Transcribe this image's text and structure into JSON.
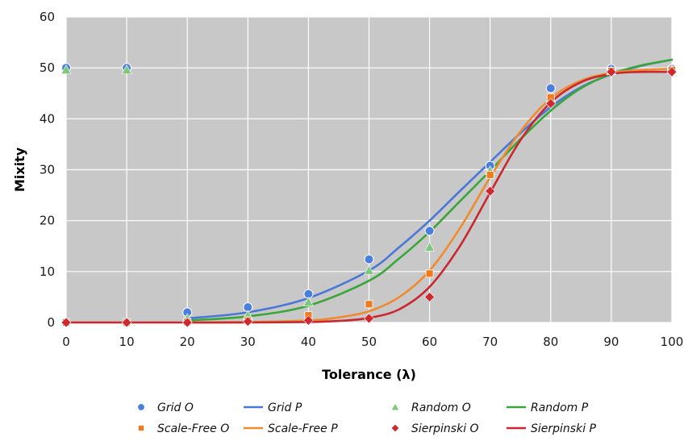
{
  "chart_data": {
    "type": "scatter",
    "title": "",
    "xlabel": "Tolerance (λ)",
    "ylabel": "Mixity",
    "xlim": [
      0,
      100
    ],
    "ylim": [
      0,
      60
    ],
    "x_ticks": [
      0,
      10,
      20,
      30,
      40,
      50,
      60,
      70,
      80,
      90,
      100
    ],
    "y_ticks": [
      0,
      10,
      20,
      30,
      40,
      50,
      60
    ],
    "grid": true,
    "plot_background": "#c8c8c8",
    "legend_position": "bottom",
    "series": [
      {
        "name": "Grid O",
        "kind": "markers",
        "marker": "circle",
        "color": "#4a7fe0",
        "x": [
          0,
          10,
          20,
          30,
          40,
          50,
          60,
          70,
          80,
          90,
          100
        ],
        "y": [
          50.0,
          50.0,
          2.0,
          3.0,
          5.6,
          12.4,
          18.0,
          30.8,
          46.0,
          49.8,
          49.8
        ]
      },
      {
        "name": "Grid P",
        "kind": "line",
        "color": "#4a78d8",
        "x": [
          20,
          30,
          40,
          50,
          55,
          60,
          65,
          70,
          75,
          80,
          85,
          90,
          95,
          100
        ],
        "y": [
          0.8,
          2.0,
          4.8,
          10.2,
          14.8,
          20.0,
          25.8,
          31.5,
          37.2,
          42.3,
          46.2,
          48.7,
          50.4,
          51.6
        ]
      },
      {
        "name": "Random O",
        "kind": "markers",
        "marker": "triangle",
        "color": "#7ec87e",
        "x": [
          0,
          10,
          20,
          30,
          40,
          50,
          60,
          70,
          80,
          90,
          100
        ],
        "y": [
          49.6,
          49.6,
          0.8,
          1.4,
          4.0,
          10.2,
          14.8,
          29.8,
          44.0,
          49.4,
          49.6
        ]
      },
      {
        "name": "Random P",
        "kind": "line",
        "color": "#3aa63a",
        "x": [
          20,
          30,
          40,
          50,
          55,
          60,
          65,
          70,
          75,
          80,
          85,
          90,
          95,
          100
        ],
        "y": [
          0.4,
          1.2,
          3.3,
          8.2,
          12.6,
          17.8,
          23.8,
          29.8,
          36.0,
          41.6,
          46.0,
          48.8,
          50.5,
          51.6
        ]
      },
      {
        "name": "Scale-Free O",
        "kind": "markers",
        "marker": "square",
        "color": "#f07a1e",
        "x": [
          0,
          10,
          20,
          30,
          40,
          50,
          60,
          70,
          80,
          90,
          100
        ],
        "y": [
          0.0,
          0.0,
          0.1,
          0.4,
          1.4,
          3.6,
          9.6,
          29.0,
          44.2,
          49.4,
          49.6
        ]
      },
      {
        "name": "Scale-Free P",
        "kind": "line",
        "color": "#f08a30",
        "x": [
          20,
          30,
          40,
          45,
          50,
          55,
          60,
          65,
          70,
          75,
          80,
          85,
          90,
          95,
          100
        ],
        "y": [
          0.0,
          0.1,
          0.4,
          1.0,
          2.2,
          5.0,
          10.2,
          18.5,
          28.5,
          37.5,
          44.0,
          47.5,
          49.0,
          49.6,
          49.8
        ]
      },
      {
        "name": "Sierpinski O",
        "kind": "markers",
        "marker": "diamond",
        "color": "#d0282e",
        "x": [
          0,
          10,
          20,
          30,
          40,
          50,
          60,
          70,
          80,
          90,
          100
        ],
        "y": [
          0.0,
          0.0,
          0.0,
          0.2,
          0.4,
          0.8,
          5.0,
          25.8,
          43.0,
          49.2,
          49.2
        ]
      },
      {
        "name": "Sierpinski  P",
        "kind": "line",
        "color": "#c8282e",
        "x": [
          0,
          10,
          20,
          30,
          40,
          45,
          50,
          55,
          60,
          65,
          70,
          75,
          80,
          85,
          90,
          95,
          100
        ],
        "y": [
          0.0,
          0.0,
          0.0,
          0.0,
          0.1,
          0.3,
          0.9,
          2.6,
          7.0,
          15.0,
          25.5,
          35.8,
          43.2,
          47.2,
          48.8,
          49.2,
          49.2
        ]
      }
    ]
  }
}
